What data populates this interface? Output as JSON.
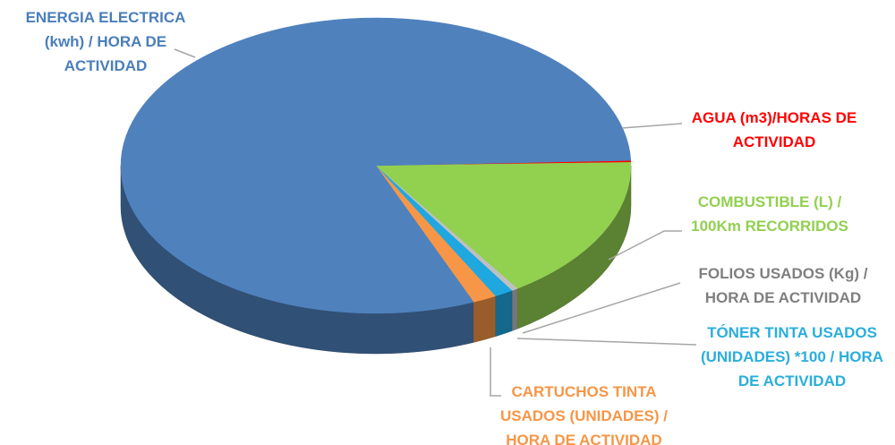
{
  "chart_data": {
    "type": "pie",
    "categories": [
      "AGUA (m3)/HORAS DE ACTIVIDAD",
      "COMBUSTIBLE (L) / 100Km RECORRIDOS",
      "FOLIOS USADOS (Kg) / HORA DE ACTIVIDAD",
      "TÓNER TINTA USADOS (UNIDADES) *100 / HORA DE ACTIVIDAD",
      "CARTUCHOS TINTA USADOS (UNIDADES) / HORA DE ACTIVIDAD",
      "ENERGIA ELECTRICA (kwh) / HORA DE ACTIVIDAD"
    ],
    "values": [
      0.2,
      16,
      0.4,
      1.2,
      1.5,
      80.7
    ],
    "colors": [
      "#ff0000",
      "#92d050",
      "#bfbfbf",
      "#1fa7e0",
      "#f79646",
      "#4f81bd"
    ]
  }
}
